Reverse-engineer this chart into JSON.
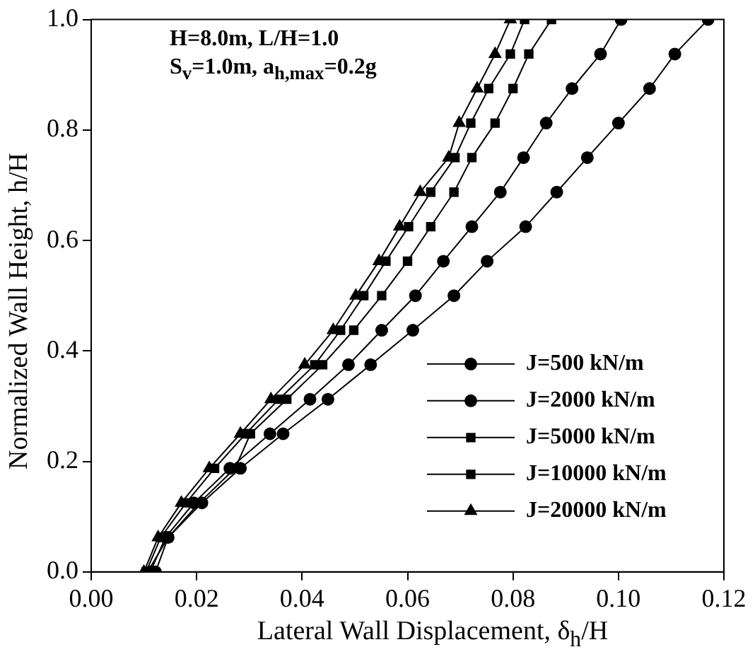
{
  "chart_data": {
    "type": "line",
    "xlabel": "Lateral Wall Displacement, δ$_{h}$/H",
    "ylabel": "Normalized Wall Height, h/H",
    "annotations": [
      "H=8.0m, L/H=1.0",
      "S$_{v}$=1.0m, a$_{h,max}$=0.2g"
    ],
    "xlim": [
      0,
      0.12
    ],
    "xticks": [
      {
        "value": 0,
        "label": "0.00"
      },
      {
        "value": 0.02,
        "label": "0.02"
      },
      {
        "value": 0.04,
        "label": "0.04"
      },
      {
        "value": 0.06,
        "label": "0.06"
      },
      {
        "value": 0.08,
        "label": "0.08"
      },
      {
        "value": 0.1,
        "label": "0.10"
      },
      {
        "value": 0.12,
        "label": "0.12"
      }
    ],
    "ylim": [
      0,
      1
    ],
    "yticks": [
      {
        "value": 0,
        "label": "0.0"
      },
      {
        "value": 0.2,
        "label": "0.2"
      },
      {
        "value": 0.4,
        "label": "0.4"
      },
      {
        "value": 0.6,
        "label": "0.6"
      },
      {
        "value": 0.8,
        "label": "0.8"
      },
      {
        "value": 1,
        "label": "1.0"
      }
    ],
    "grid": false,
    "legend": "bottom right",
    "line_style": "solid",
    "series": [
      {
        "name": "J=500 kN/m",
        "color": "#000000",
        "marker": "circle",
        "x": [
          0.0122,
          0.0146,
          0.021,
          0.0283,
          0.0364,
          0.0449,
          0.053,
          0.061,
          0.0688,
          0.0751,
          0.0824,
          0.0883,
          0.0941,
          0.1,
          0.1059,
          0.1107,
          0.117
        ],
        "values": [
          0,
          0.0625,
          0.125,
          0.1875,
          0.25,
          0.3125,
          0.375,
          0.4375,
          0.5,
          0.5625,
          0.625,
          0.6875,
          0.75,
          0.8125,
          0.875,
          0.9375,
          1
        ]
      },
      {
        "name": "J=2000 kN/m",
        "color": "#000000",
        "marker": "circle",
        "x": [
          0.0112,
          0.0141,
          0.0195,
          0.0263,
          0.0339,
          0.0415,
          0.0488,
          0.0551,
          0.0615,
          0.0668,
          0.0722,
          0.0776,
          0.082,
          0.0863,
          0.0912,
          0.0966,
          0.1005
        ],
        "values": [
          0,
          0.0625,
          0.125,
          0.1875,
          0.25,
          0.3125,
          0.375,
          0.4375,
          0.5,
          0.5625,
          0.625,
          0.6875,
          0.75,
          0.8125,
          0.875,
          0.9375,
          1
        ]
      },
      {
        "name": "J=5000 kN/m",
        "color": "#000000",
        "marker": "square",
        "x": [
          0.0107,
          0.0146,
          0.0205,
          0.0273,
          0.0302,
          0.0371,
          0.0439,
          0.0498,
          0.0551,
          0.06,
          0.0644,
          0.0688,
          0.0722,
          0.0766,
          0.08,
          0.083,
          0.0873
        ],
        "values": [
          0,
          0.0625,
          0.125,
          0.1875,
          0.25,
          0.3125,
          0.375,
          0.4375,
          0.5,
          0.5625,
          0.625,
          0.6875,
          0.75,
          0.8125,
          0.875,
          0.9375,
          1
        ]
      },
      {
        "name": "J=10000 kN/m",
        "color": "#000000",
        "marker": "square",
        "x": [
          0.0104,
          0.0132,
          0.018,
          0.0234,
          0.0293,
          0.0356,
          0.0424,
          0.0473,
          0.0517,
          0.0559,
          0.0602,
          0.0644,
          0.069,
          0.072,
          0.0754,
          0.0795,
          0.0822
        ],
        "values": [
          0,
          0.0625,
          0.125,
          0.1875,
          0.25,
          0.3125,
          0.375,
          0.4375,
          0.5,
          0.5625,
          0.625,
          0.6875,
          0.75,
          0.8125,
          0.875,
          0.9375,
          1
        ]
      },
      {
        "name": "J=20000 kN/m",
        "color": "#000000",
        "marker": "triangle",
        "x": [
          0.01,
          0.0127,
          0.0171,
          0.0224,
          0.0283,
          0.0341,
          0.0405,
          0.0459,
          0.0502,
          0.0546,
          0.0585,
          0.0624,
          0.0678,
          0.0698,
          0.0732,
          0.0766,
          0.0795
        ],
        "values": [
          0,
          0.0625,
          0.125,
          0.1875,
          0.25,
          0.3125,
          0.375,
          0.4375,
          0.5,
          0.5625,
          0.625,
          0.6875,
          0.75,
          0.8125,
          0.875,
          0.9375,
          1
        ]
      }
    ]
  }
}
